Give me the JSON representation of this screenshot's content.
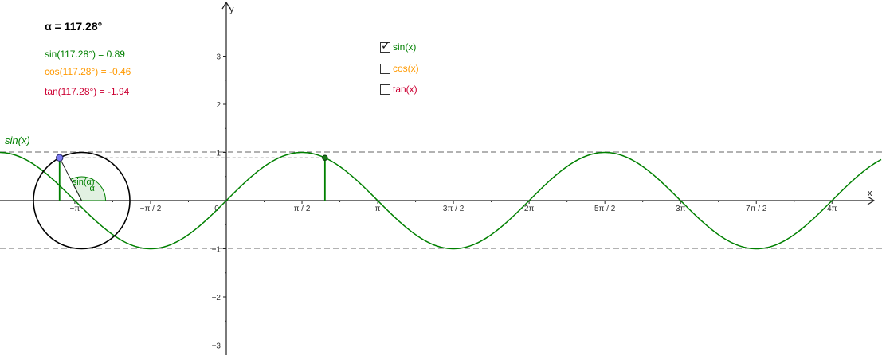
{
  "alpha_label": "α = 117.28°",
  "readouts": {
    "sin": {
      "text": "sin(117.28°) = 0.89",
      "color": "#008000"
    },
    "cos": {
      "text": "cos(117.28°) = -0.46",
      "color": "#ff9900"
    },
    "tan": {
      "text": "tan(117.28°) = -1.94",
      "color": "#cc0033"
    }
  },
  "checkboxes": [
    {
      "label": "sin(x)",
      "checked": true,
      "color": "#008000"
    },
    {
      "label": "cos(x)",
      "checked": false,
      "color": "#ff9900"
    },
    {
      "label": "tan(x)",
      "checked": false,
      "color": "#cc0033"
    }
  ],
  "graph": {
    "function_label": "sin(x)",
    "curve_color": "#008000",
    "x_axis_label": "x",
    "y_axis_label": "y",
    "x_ticks": [
      "−π",
      "−π / 2",
      "0",
      "π / 2",
      "π",
      "3π / 2",
      "2π",
      "5π / 2",
      "3π",
      "7π / 2",
      "4π"
    ],
    "y_ticks": [
      "3",
      "2",
      "1",
      "−1",
      "−2",
      "−3"
    ],
    "circle_sin_label": "sin(α)",
    "angle_label": "α",
    "angle_deg": 117.28,
    "point_x_value": 2.0469,
    "sin_value": 0.8889
  }
}
